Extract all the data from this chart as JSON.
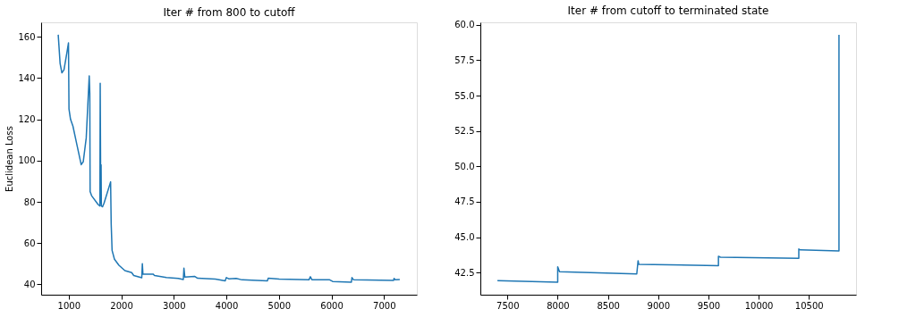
{
  "chart_data": [
    {
      "type": "line",
      "title": "Iter # from 800 to cutoff",
      "ylabel": "Euclidean Loss",
      "x": [
        800,
        836,
        870,
        910,
        966,
        995,
        1005,
        1034,
        1080,
        1164,
        1237,
        1277,
        1333,
        1390,
        1401,
        1407,
        1435,
        1559,
        1593,
        1599,
        1610,
        1616,
        1621,
        1644,
        1672,
        1797,
        1808,
        1825,
        1870,
        1955,
        2068,
        2198,
        2237,
        2390,
        2401,
        2412,
        2604,
        2633,
        2859,
        3085,
        3181,
        3192,
        3209,
        3395,
        3452,
        3791,
        3977,
        4000,
        4045,
        4186,
        4299,
        4780,
        4797,
        5006,
        5571,
        5599,
        5627,
        5966,
        6023,
        6379,
        6390,
        6418,
        7181,
        7192,
        7209,
        7300
      ],
      "series": [
        {
          "color": "#1f77b4",
          "values": [
            161,
            147,
            142.5,
            144,
            152.5,
            157,
            125,
            120,
            116.7,
            106.7,
            98,
            99.5,
            111,
            141,
            132.5,
            85,
            83,
            78.7,
            78,
            137.5,
            79.4,
            98,
            78,
            77.6,
            79.4,
            89.7,
            69.4,
            56.5,
            52.2,
            49.3,
            46.7,
            45.7,
            44.3,
            43.2,
            50,
            45,
            45,
            44.3,
            43.3,
            42.9,
            42.4,
            47.9,
            43.6,
            43.9,
            43,
            42.6,
            41.7,
            43.3,
            42.7,
            42.9,
            42.2,
            41.7,
            43,
            42.6,
            42.2,
            43.7,
            42.3,
            42.2,
            41.4,
            41.1,
            43.3,
            42.3,
            41.9,
            42.9,
            42.3,
            42.4
          ]
        }
      ],
      "xlim": [
        475,
        7625
      ],
      "xticks": [
        1000,
        2000,
        3000,
        4000,
        5000,
        6000,
        7000
      ],
      "ylim": [
        35,
        167
      ],
      "yticks": [
        40,
        60,
        80,
        100,
        120,
        140,
        160
      ],
      "grid": false
    },
    {
      "type": "line",
      "title": "Iter # from cutoff to terminated state",
      "x": [
        7400,
        8000,
        8000,
        8018,
        8787,
        8800,
        8807,
        9600,
        9600,
        9620,
        10400,
        10400,
        10414,
        10800,
        10800
      ],
      "series": [
        {
          "color": "#1f77b4",
          "values": [
            41.92,
            41.81,
            42.9,
            42.56,
            42.4,
            43.33,
            43.08,
            42.98,
            43.64,
            43.58,
            43.5,
            44.16,
            44.1,
            44.02,
            59.3
          ]
        }
      ],
      "xlim": [
        7230,
        10970
      ],
      "xticks": [
        7500,
        8000,
        8500,
        9000,
        9500,
        10000,
        10500
      ],
      "ylim": [
        40.93,
        60.18
      ],
      "yticks": [
        42.5,
        {
          "value": 45,
          "label": "45.0"
        },
        47.5,
        {
          "value": 50,
          "label": "50.0"
        },
        52.5,
        {
          "value": 55,
          "label": "55.0"
        },
        57.5,
        {
          "value": 60,
          "label": "60.0"
        }
      ],
      "grid": false
    }
  ]
}
